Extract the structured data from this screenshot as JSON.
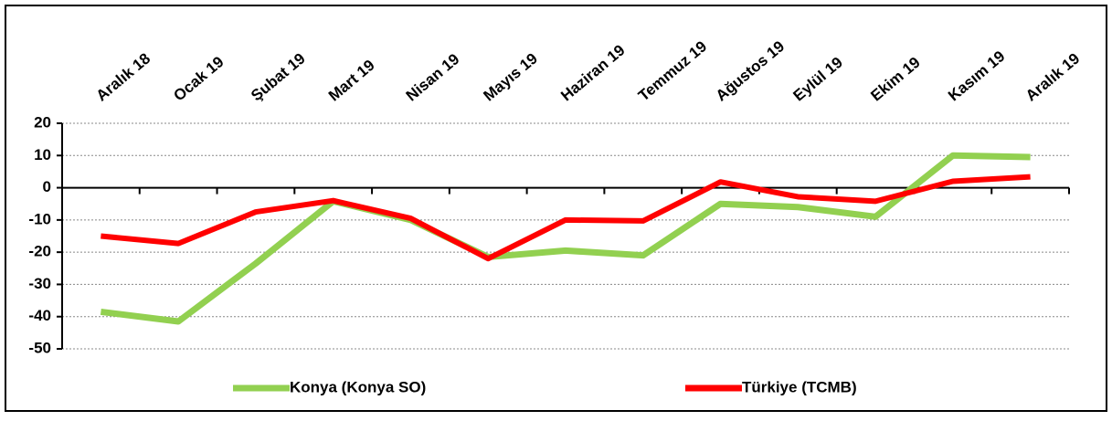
{
  "chart_data": {
    "type": "line",
    "categories": [
      "Aralık 18",
      "Ocak 19",
      "Şubat 19",
      "Mart 19",
      "Nisan 19",
      "Mayıs 19",
      "Haziran 19",
      "Temmuz 19",
      "Ağustos 19",
      "Eylül 19",
      "Ekim 19",
      "Kasım 19",
      "Aralık 19"
    ],
    "series": [
      {
        "name": "Konya (Konya SO)",
        "color": "#92d050",
        "values": [
          -38.5,
          -41.5,
          -23.5,
          -4.2,
          -10,
          -21.5,
          -19.5,
          -21,
          -5,
          -6,
          -9,
          10,
          9.5
        ]
      },
      {
        "name": "Türkiye (TCMB)",
        "color": "#ff0000",
        "values": [
          -15,
          -17.3,
          -7.5,
          -4,
          -9.5,
          -22,
          -10,
          -10.3,
          1.8,
          -2.8,
          -4.2,
          2,
          3.4
        ]
      }
    ],
    "ylim": [
      -50,
      20
    ],
    "yticks": [
      -50,
      -40,
      -30,
      -20,
      -10,
      0,
      10,
      20
    ],
    "grid": true,
    "legend": "bottom"
  }
}
